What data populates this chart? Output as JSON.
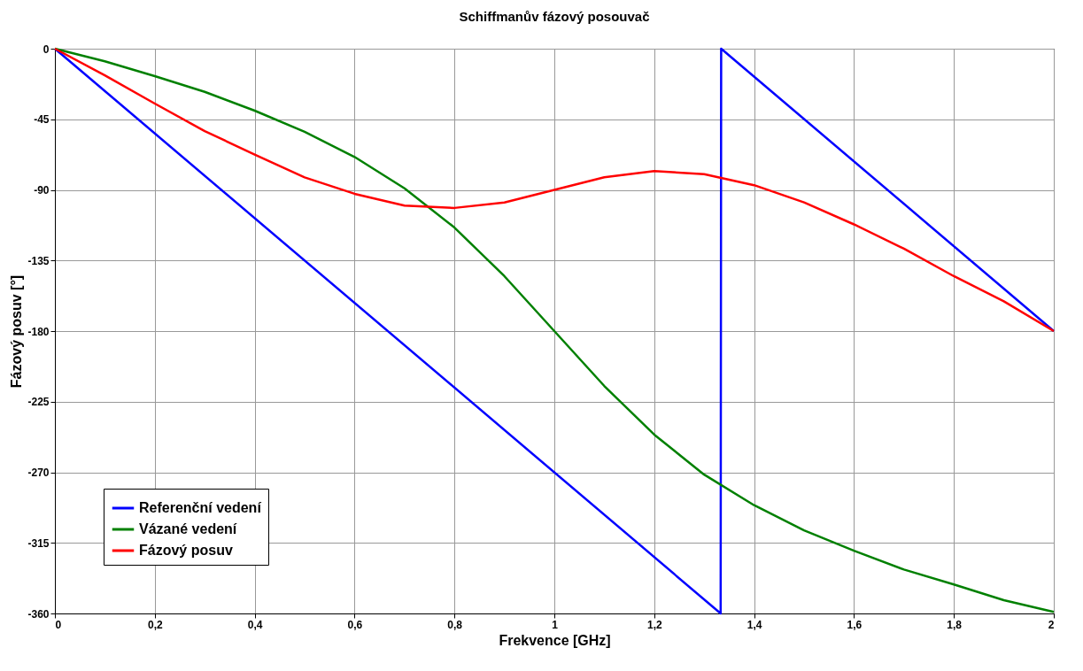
{
  "chart_data": {
    "type": "line",
    "title": "Schiffmanův fázový posouvač",
    "xlabel": "Frekvence [GHz]",
    "ylabel": "Fázový posuv [°]",
    "xlim": [
      0,
      2
    ],
    "xticks": [
      0,
      {
        "value": 0.2,
        "label": "0,2"
      },
      {
        "value": 0.4,
        "label": "0,4"
      },
      {
        "value": 0.6,
        "label": "0,6"
      },
      {
        "value": 0.8,
        "label": "0,8"
      },
      1,
      {
        "value": 1.2,
        "label": "1,2"
      },
      {
        "value": 1.4,
        "label": "1,4"
      },
      {
        "value": 1.6,
        "label": "1,6"
      },
      {
        "value": 1.8,
        "label": "1,8"
      },
      2
    ],
    "ylim": [
      -360,
      0
    ],
    "yticks": [
      -360,
      -315,
      -270,
      -225,
      -180,
      -135,
      -90,
      -45,
      0
    ],
    "grid": true,
    "legend": "bottom left",
    "marker": "none",
    "line_style": "solid",
    "series": [
      {
        "name": "Referenční vedení",
        "color": "#0000ff",
        "x": [
          0,
          1.333,
          1.334,
          2
        ],
        "values": [
          0,
          -360,
          0,
          -180
        ]
      },
      {
        "name": "Vázané vedení",
        "color": "#008000",
        "x": [
          0,
          0.1,
          0.2,
          0.3,
          0.4,
          0.5,
          0.6,
          0.7,
          0.8,
          0.9,
          1,
          1.1,
          1.2,
          1.3,
          1.4,
          1.5,
          1.6,
          1.7,
          1.8,
          1.9,
          2
        ],
        "values": [
          0,
          -8,
          -17.5,
          -27.5,
          -39.5,
          -53,
          -69,
          -89,
          -114,
          -145,
          -180,
          -215,
          -246,
          -271.5,
          -291,
          -307,
          -320,
          -332,
          -341.5,
          -351.5,
          -359
        ]
      },
      {
        "name": "Fázový posuv",
        "color": "#ff0000",
        "x": [
          0,
          0.1,
          0.2,
          0.3,
          0.4,
          0.5,
          0.6,
          0.7,
          0.8,
          0.9,
          1,
          1.1,
          1.2,
          1.3,
          1.4,
          1.5,
          1.6,
          1.7,
          1.8,
          1.9,
          2
        ],
        "values": [
          0,
          -17,
          -35,
          -52.5,
          -67.5,
          -82,
          -92.5,
          -100,
          -101.5,
          -98,
          -90,
          -82,
          -78,
          -80,
          -87,
          -98,
          -112,
          -127.5,
          -145,
          -161,
          -180
        ]
      }
    ]
  }
}
